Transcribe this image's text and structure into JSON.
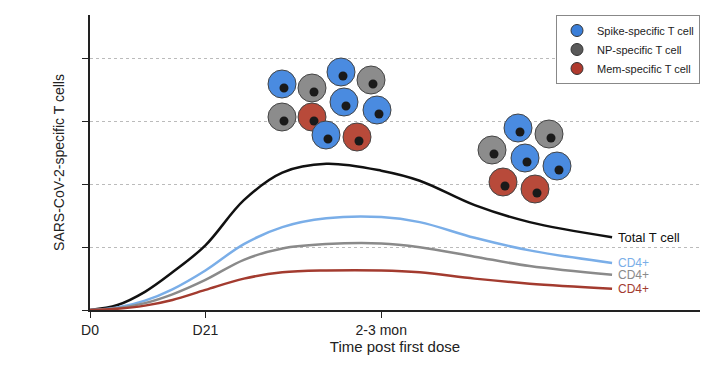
{
  "chart_data": {
    "type": "line",
    "x_label": "Time post first dose",
    "y_label": "SARS-CoV-2-specific T cells",
    "x": [
      0,
      5,
      10,
      15,
      21,
      28,
      35,
      43,
      53,
      60,
      70,
      80,
      95
    ],
    "xlim": [
      0,
      111
    ],
    "xticks": [
      {
        "value": 0,
        "label": "D0"
      },
      {
        "value": 21,
        "label": "D21"
      },
      {
        "value": 53,
        "label": "2-3 mon"
      }
    ],
    "ylim": [
      0,
      4.7
    ],
    "yticks": [
      0,
      1,
      2,
      3,
      4
    ],
    "grid": true,
    "tick_labels": "x",
    "legend": "upper right",
    "legend_items": [
      {
        "name": "Spike-specific T cell",
        "color": "#3b7fd9",
        "marker": "circle"
      },
      {
        "name": "NP-specific T cell",
        "color": "#5a5a5a",
        "marker": "circle"
      },
      {
        "name": "Mem-specific T cell",
        "color": "#b03a2e",
        "marker": "circle"
      }
    ],
    "series": [
      {
        "name": "Total T cell",
        "color": "#111111",
        "line_style": "solid",
        "values": [
          0,
          0.08,
          0.29,
          0.6,
          1.03,
          1.75,
          2.19,
          2.33,
          2.22,
          2.06,
          1.67,
          1.4,
          1.16
        ]
      },
      {
        "name": "CD4+",
        "color": "#7aaee8",
        "line_style": "solid",
        "values": [
          0,
          0.04,
          0.15,
          0.33,
          0.63,
          1.05,
          1.32,
          1.46,
          1.48,
          1.4,
          1.15,
          0.95,
          0.75
        ]
      },
      {
        "name": "CD4+",
        "color": "#8a8a8a",
        "line_style": "solid",
        "values": [
          0,
          0.03,
          0.11,
          0.25,
          0.48,
          0.8,
          0.98,
          1.05,
          1.06,
          1.0,
          0.85,
          0.7,
          0.56
        ]
      },
      {
        "name": "CD4+",
        "color": "#a33b2f",
        "line_style": "solid",
        "values": [
          0,
          0.02,
          0.07,
          0.16,
          0.32,
          0.5,
          0.6,
          0.63,
          0.63,
          0.6,
          0.5,
          0.42,
          0.34
        ]
      }
    ]
  }
}
